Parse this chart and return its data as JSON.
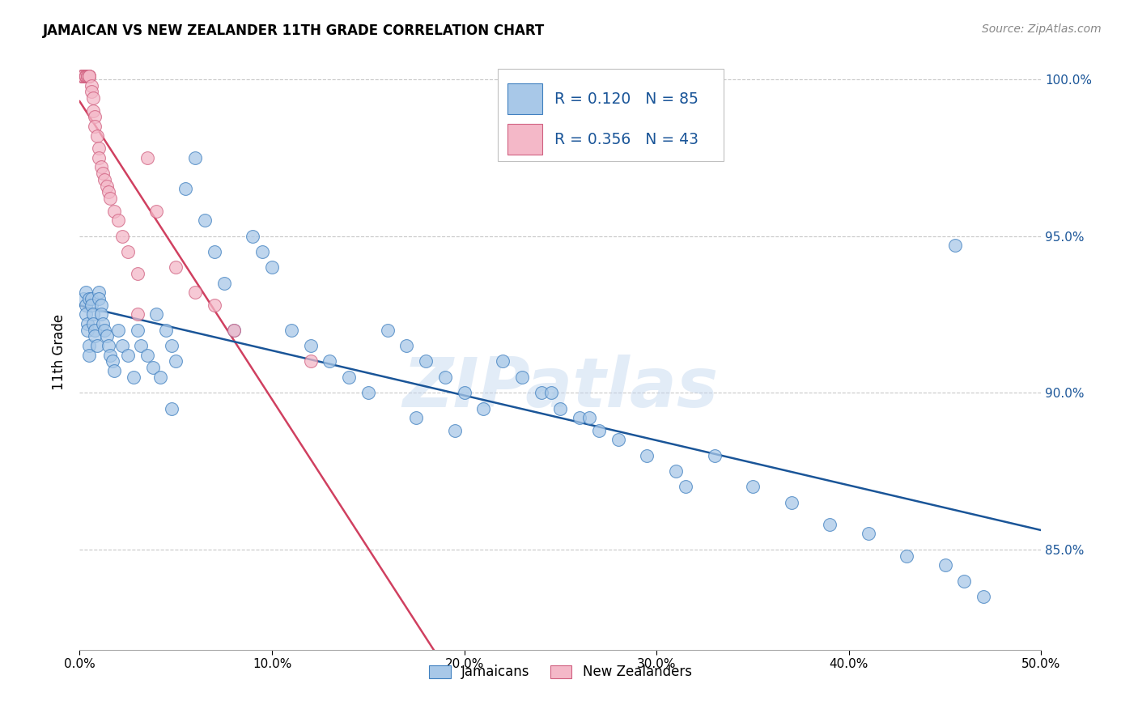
{
  "title": "JAMAICAN VS NEW ZEALANDER 11TH GRADE CORRELATION CHART",
  "source": "Source: ZipAtlas.com",
  "ylabel": "11th Grade",
  "xlim": [
    0.0,
    0.5
  ],
  "ylim": [
    0.818,
    1.008
  ],
  "xtick_vals": [
    0.0,
    0.1,
    0.2,
    0.3,
    0.4,
    0.5
  ],
  "ytick_vals": [
    0.85,
    0.9,
    0.95,
    1.0
  ],
  "x_tick_labels": [
    "0.0%",
    "10.0%",
    "20.0%",
    "30.0%",
    "40.0%",
    "50.0%"
  ],
  "y_tick_labels": [
    "85.0%",
    "90.0%",
    "95.0%",
    "100.0%"
  ],
  "legend_labels": [
    "Jamaicans",
    "New Zealanders"
  ],
  "blue_face": "#a8c8e8",
  "blue_edge": "#4080c0",
  "pink_face": "#f4b8c8",
  "pink_edge": "#d06080",
  "blue_line": "#1a5598",
  "pink_line": "#d04060",
  "legend_R_blue": "R = 0.120",
  "legend_N_blue": "N = 85",
  "legend_R_pink": "R = 0.356",
  "legend_N_pink": "N = 43",
  "watermark": "ZIPatlas",
  "blue_N": 85,
  "pink_N": 43,
  "blue_x": [
    0.002,
    0.003,
    0.003,
    0.003,
    0.004,
    0.004,
    0.005,
    0.005,
    0.005,
    0.006,
    0.006,
    0.007,
    0.007,
    0.008,
    0.008,
    0.009,
    0.01,
    0.01,
    0.011,
    0.011,
    0.012,
    0.013,
    0.014,
    0.015,
    0.016,
    0.017,
    0.018,
    0.02,
    0.022,
    0.025,
    0.028,
    0.03,
    0.032,
    0.035,
    0.038,
    0.04,
    0.042,
    0.045,
    0.048,
    0.05,
    0.055,
    0.06,
    0.065,
    0.07,
    0.075,
    0.08,
    0.09,
    0.1,
    0.11,
    0.12,
    0.13,
    0.14,
    0.15,
    0.16,
    0.17,
    0.18,
    0.19,
    0.2,
    0.21,
    0.22,
    0.23,
    0.24,
    0.25,
    0.26,
    0.27,
    0.28,
    0.295,
    0.31,
    0.33,
    0.35,
    0.37,
    0.39,
    0.41,
    0.43,
    0.45,
    0.46,
    0.47,
    0.048,
    0.095,
    0.175,
    0.195,
    0.245,
    0.265,
    0.315,
    0.455
  ],
  "blue_y": [
    0.93,
    0.932,
    0.928,
    0.925,
    0.922,
    0.92,
    0.93,
    0.915,
    0.912,
    0.93,
    0.928,
    0.925,
    0.922,
    0.92,
    0.918,
    0.915,
    0.932,
    0.93,
    0.928,
    0.925,
    0.922,
    0.92,
    0.918,
    0.915,
    0.912,
    0.91,
    0.907,
    0.92,
    0.915,
    0.912,
    0.905,
    0.92,
    0.915,
    0.912,
    0.908,
    0.925,
    0.905,
    0.92,
    0.915,
    0.91,
    0.965,
    0.975,
    0.955,
    0.945,
    0.935,
    0.92,
    0.95,
    0.94,
    0.92,
    0.915,
    0.91,
    0.905,
    0.9,
    0.92,
    0.915,
    0.91,
    0.905,
    0.9,
    0.895,
    0.91,
    0.905,
    0.9,
    0.895,
    0.892,
    0.888,
    0.885,
    0.88,
    0.875,
    0.88,
    0.87,
    0.865,
    0.858,
    0.855,
    0.848,
    0.845,
    0.84,
    0.835,
    0.895,
    0.945,
    0.892,
    0.888,
    0.9,
    0.892,
    0.87,
    0.947
  ],
  "pink_x": [
    0.001,
    0.001,
    0.002,
    0.002,
    0.002,
    0.003,
    0.003,
    0.003,
    0.003,
    0.004,
    0.004,
    0.004,
    0.005,
    0.005,
    0.005,
    0.006,
    0.006,
    0.007,
    0.007,
    0.008,
    0.008,
    0.009,
    0.01,
    0.01,
    0.011,
    0.012,
    0.013,
    0.014,
    0.015,
    0.016,
    0.018,
    0.02,
    0.022,
    0.025,
    0.03,
    0.035,
    0.04,
    0.05,
    0.06,
    0.07,
    0.08,
    0.12,
    0.03
  ],
  "pink_y": [
    1.001,
    1.001,
    1.001,
    1.001,
    1.001,
    1.001,
    1.001,
    1.001,
    1.001,
    1.001,
    1.001,
    1.001,
    1.001,
    1.001,
    1.001,
    0.998,
    0.996,
    0.994,
    0.99,
    0.988,
    0.985,
    0.982,
    0.978,
    0.975,
    0.972,
    0.97,
    0.968,
    0.966,
    0.964,
    0.962,
    0.958,
    0.955,
    0.95,
    0.945,
    0.938,
    0.975,
    0.958,
    0.94,
    0.932,
    0.928,
    0.92,
    0.91,
    0.925
  ]
}
